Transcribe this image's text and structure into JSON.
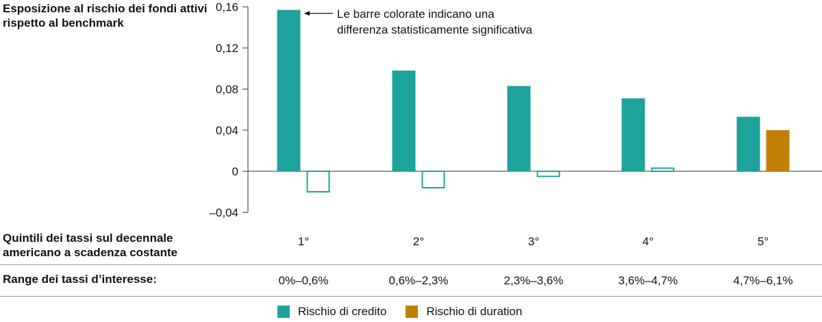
{
  "chart_data": {
    "type": "bar",
    "ylabel": "Esposizione al rischio dei fondi attivi rispetto al benchmark",
    "xlabel": "Quintili dei tassi sul decennale americano a scadenza costante",
    "categories": [
      "1°",
      "2°",
      "3°",
      "4°",
      "5°"
    ],
    "ranges_label": "Range dei tassi d’interesse:",
    "ranges": [
      "0%–0,6%",
      "0,6%–2,3%",
      "2,3%–3,6%",
      "3,6%–4,7%",
      "4,7%–6,1%"
    ],
    "ylim": [
      -0.04,
      0.16
    ],
    "yticks": [
      "0,16",
      "0,12",
      "0,08",
      "0,04",
      "0",
      "–0,04"
    ],
    "ytick_values": [
      0.16,
      0.12,
      0.08,
      0.04,
      0,
      -0.04
    ],
    "series": [
      {
        "name": "Rischio di credito",
        "color": "#1ea39b",
        "values": [
          0.157,
          0.098,
          0.083,
          0.071,
          0.053
        ],
        "significant": [
          true,
          true,
          true,
          true,
          true
        ]
      },
      {
        "name": "Rischio di duration",
        "color": "#c17f05",
        "values": [
          -0.02,
          -0.016,
          -0.005,
          0.003,
          0.04
        ],
        "significant": [
          false,
          false,
          false,
          false,
          true
        ]
      }
    ],
    "annotation": "Le barre colorate indicano una differenza statisticamente significativa",
    "grid": false,
    "legend_position": "bottom"
  }
}
